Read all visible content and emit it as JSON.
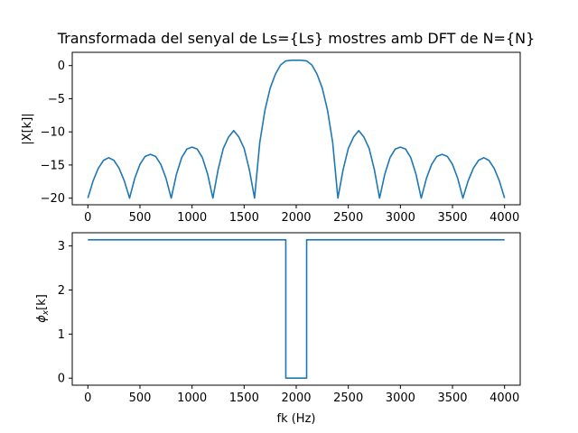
{
  "chart_data": [
    {
      "type": "line",
      "title": "Transformada del senyal de Ls={Ls} mostres amb DFT de N={N}",
      "xlabel": "",
      "ylabel": "|X[k]|",
      "xlim": [
        -150,
        4150
      ],
      "ylim": [
        -21,
        2
      ],
      "xticks": [
        0,
        500,
        1000,
        1500,
        2000,
        2500,
        3000,
        3500,
        4000
      ],
      "xtick_labels": [
        "0",
        "500",
        "1000",
        "1500",
        "2000",
        "2500",
        "3000",
        "3500",
        "4000"
      ],
      "yticks": [
        0,
        -5,
        -10,
        -15,
        -20
      ],
      "ytick_labels": [
        "0",
        "−5",
        "−10",
        "−15",
        "−20"
      ],
      "grid": false,
      "series": [
        {
          "color": "#1f77b4",
          "x": [
            0,
            50,
            100,
            150,
            200,
            250,
            300,
            350,
            400,
            450,
            500,
            550,
            600,
            650,
            700,
            750,
            800,
            850,
            900,
            950,
            1000,
            1050,
            1100,
            1150,
            1200,
            1250,
            1300,
            1350,
            1400,
            1450,
            1500,
            1550,
            1600,
            1650,
            1700,
            1750,
            1800,
            1850,
            1900,
            1950,
            2000,
            2050,
            2100,
            2150,
            2200,
            2250,
            2300,
            2350,
            2400,
            2450,
            2500,
            2550,
            2600,
            2650,
            2700,
            2750,
            2800,
            2850,
            2900,
            2950,
            3000,
            3050,
            3100,
            3150,
            3200,
            3250,
            3300,
            3350,
            3400,
            3450,
            3500,
            3550,
            3600,
            3650,
            3700,
            3750,
            3800,
            3850,
            3900,
            3950,
            4000
          ],
          "y": [
            -20,
            -17.4,
            -15.5,
            -14.3,
            -13.9,
            -14.3,
            -15.5,
            -17.4,
            -20,
            -17.0,
            -14.9,
            -13.7,
            -13.4,
            -13.7,
            -14.9,
            -17.0,
            -20,
            -16.4,
            -13.9,
            -12.6,
            -12.3,
            -12.6,
            -13.9,
            -16.4,
            -20,
            -15.7,
            -12.5,
            -10.8,
            -9.8,
            -10.8,
            -12.5,
            -15.7,
            -20,
            -11.6,
            -6.7,
            -3.4,
            -1.3,
            0.1,
            0.7,
            0.8,
            0.8,
            0.8,
            0.7,
            0.1,
            -1.3,
            -3.4,
            -6.7,
            -11.6,
            -20,
            -15.7,
            -12.5,
            -10.8,
            -9.8,
            -10.8,
            -12.5,
            -15.7,
            -20,
            -16.4,
            -13.9,
            -12.6,
            -12.3,
            -12.6,
            -13.9,
            -16.4,
            -20,
            -17.0,
            -14.9,
            -13.7,
            -13.4,
            -13.7,
            -14.9,
            -17.0,
            -20,
            -17.4,
            -15.5,
            -14.3,
            -13.9,
            -14.3,
            -15.5,
            -17.4,
            -20
          ]
        }
      ]
    },
    {
      "type": "line",
      "title": "",
      "xlabel": "fk (Hz)",
      "ylabel": "ϕ",
      "ylabel_sub": "x",
      "ylabel_rest": "[k]",
      "xlim": [
        -150,
        4150
      ],
      "ylim": [
        -0.16,
        3.3
      ],
      "xticks": [
        0,
        500,
        1000,
        1500,
        2000,
        2500,
        3000,
        3500,
        4000
      ],
      "xtick_labels": [
        "0",
        "500",
        "1000",
        "1500",
        "2000",
        "2500",
        "3000",
        "3500",
        "4000"
      ],
      "yticks": [
        0,
        1,
        2,
        3
      ],
      "ytick_labels": [
        "0",
        "1",
        "2",
        "3"
      ],
      "grid": false,
      "series": [
        {
          "color": "#1f77b4",
          "x": [
            0,
            1900,
            1900,
            2100,
            2100,
            4000
          ],
          "y": [
            3.14,
            3.14,
            0,
            0,
            3.14,
            3.14
          ]
        }
      ]
    }
  ]
}
